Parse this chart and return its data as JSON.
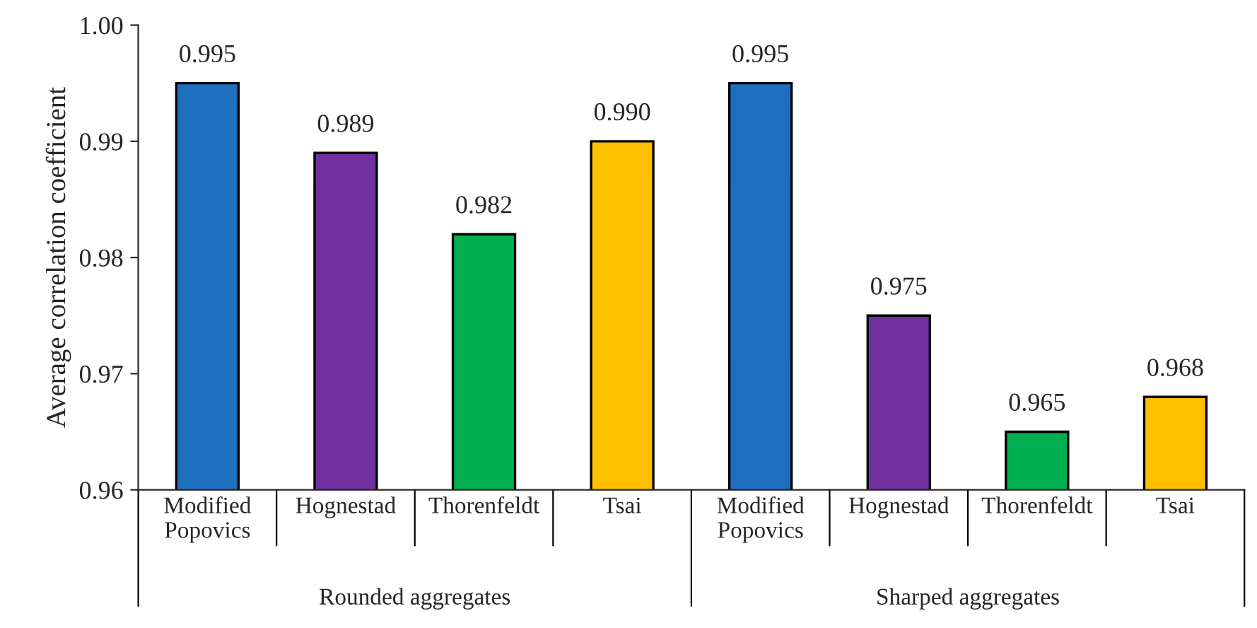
{
  "chart_data": {
    "type": "bar",
    "ylabel": "Average correlation coefficient",
    "categories": [
      "Modified\nPopovics",
      "Hognestad",
      "Thorenfeldt",
      "Tsai",
      "Modified\nPopovics",
      "Hognestad",
      "Thorenfeldt",
      "Tsai"
    ],
    "values": [
      0.995,
      0.989,
      0.982,
      0.99,
      0.995,
      0.975,
      0.965,
      0.968
    ],
    "colors": [
      "#1f6fc0",
      "#7030a0",
      "#00b050",
      "#ffc000",
      "#1f6fc0",
      "#7030a0",
      "#00b050",
      "#ffc000"
    ],
    "ylim": [
      0.96,
      1.0
    ],
    "yticks": [
      0.96,
      0.97,
      0.98,
      0.99,
      {
        "value": 1.0,
        "label": "1.00"
      }
    ],
    "value_labels": [
      "0.995",
      "0.989",
      "0.982",
      "0.990",
      "0.995",
      "0.975",
      "0.965",
      "0.968"
    ],
    "grid": false,
    "legend": false,
    "annotations": [
      "Rounded aggregates",
      "Sharped aggregates"
    ]
  }
}
